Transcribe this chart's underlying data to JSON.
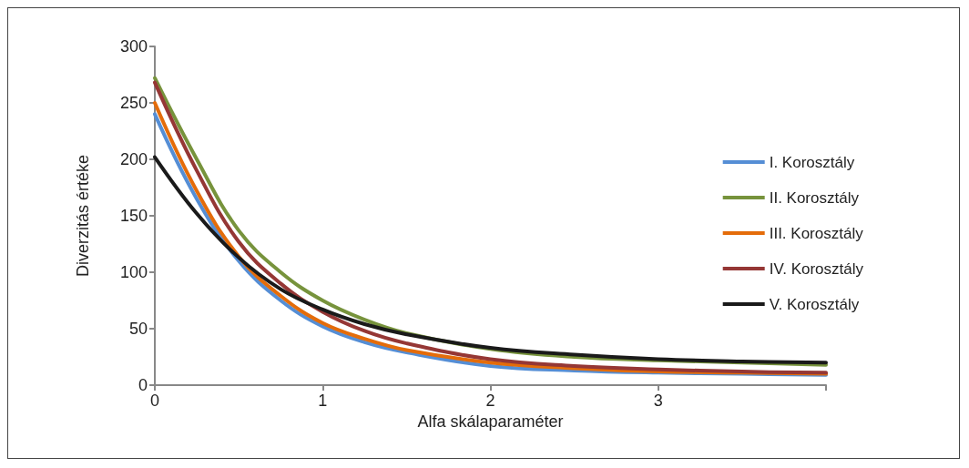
{
  "chart_data": {
    "type": "line",
    "xlabel": "Alfa skálaparaméter",
    "ylabel": "Diverzitás értéke",
    "x": [
      0,
      0.25,
      0.5,
      0.75,
      1,
      1.25,
      1.5,
      2,
      2.5,
      3,
      3.5,
      4
    ],
    "xlim": [
      0,
      4
    ],
    "xticks": [
      0,
      1,
      2,
      3,
      {
        "value": 4,
        "label": null
      }
    ],
    "ylim": [
      0,
      300
    ],
    "yticks": [
      0,
      50,
      100,
      150,
      200,
      250,
      300
    ],
    "grid": false,
    "legend": "right",
    "marker": "none",
    "line_style": "solid",
    "series": [
      {
        "name": "I. Korosztály",
        "color": "#558ed5",
        "values": [
          240,
          165,
          110,
          75,
          52,
          38,
          29,
          17,
          13,
          11,
          10,
          9
        ]
      },
      {
        "name": "II. Korosztály",
        "color": "#77933c",
        "values": [
          272,
          200,
          137,
          100,
          75,
          58,
          46,
          32,
          25,
          22,
          20,
          18
        ]
      },
      {
        "name": "III. Korosztály",
        "color": "#e46c0a",
        "values": [
          250,
          172,
          114,
          79,
          55,
          41,
          31,
          20,
          15,
          12,
          11,
          10
        ]
      },
      {
        "name": "IV. Korosztály",
        "color": "#953735",
        "values": [
          268,
          190,
          127,
          90,
          65,
          48,
          37,
          23,
          17,
          14,
          12,
          11
        ]
      },
      {
        "name": "V. Korosztály",
        "color": "#1a1a1a",
        "values": [
          202,
          152,
          113,
          85,
          67,
          54,
          45,
          33,
          27,
          23,
          21,
          20
        ]
      }
    ]
  }
}
